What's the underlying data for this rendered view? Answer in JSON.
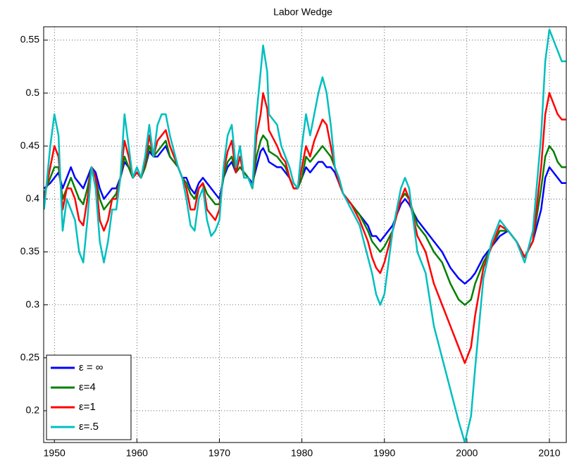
{
  "chart_data": {
    "type": "line",
    "title": "Labor Wedge",
    "x": [
      1948.75,
      1949.5,
      1950,
      1950.5,
      1951,
      1951.5,
      1952,
      1952.5,
      1953,
      1953.5,
      1954,
      1954.5,
      1955,
      1955.5,
      1956,
      1956.5,
      1957,
      1957.5,
      1958,
      1958.5,
      1959,
      1959.5,
      1960,
      1960.5,
      1961,
      1961.5,
      1962,
      1962.5,
      1963,
      1963.5,
      1964,
      1964.5,
      1965,
      1965.5,
      1966,
      1966.5,
      1967,
      1967.5,
      1968,
      1968.5,
      1969,
      1969.5,
      1970,
      1970.5,
      1971,
      1971.5,
      1972,
      1972.5,
      1973,
      1973.5,
      1974,
      1974.5,
      1975,
      1975.3,
      1975.8,
      1976,
      1977,
      1977.5,
      1978,
      1978.5,
      1979,
      1979.5,
      1980,
      1980.5,
      1981,
      1981.5,
      1982,
      1982.5,
      1983,
      1983.5,
      1984,
      1984.5,
      1985,
      1986,
      1987,
      1988,
      1988.5,
      1989,
      1989.5,
      1990,
      1991,
      1992,
      1992.5,
      1993,
      1994,
      1995,
      1996,
      1997,
      1998,
      1999,
      1999.75,
      2000.5,
      2001,
      2002,
      2003,
      2004,
      2005,
      2006,
      2007,
      2008,
      2009,
      2009.5,
      2010,
      2010.5,
      2011,
      2011.5,
      2012
    ],
    "series": [
      {
        "name": "ε = ∞",
        "color": "#0000ff",
        "values": [
          0.41,
          0.415,
          0.42,
          0.425,
          0.41,
          0.42,
          0.43,
          0.42,
          0.415,
          0.41,
          0.42,
          0.43,
          0.425,
          0.41,
          0.4,
          0.405,
          0.41,
          0.41,
          0.42,
          0.435,
          0.43,
          0.42,
          0.425,
          0.42,
          0.43,
          0.445,
          0.44,
          0.44,
          0.445,
          0.45,
          0.44,
          0.435,
          0.43,
          0.42,
          0.42,
          0.41,
          0.405,
          0.415,
          0.42,
          0.415,
          0.41,
          0.405,
          0.4,
          0.42,
          0.43,
          0.435,
          0.425,
          0.43,
          0.425,
          0.42,
          0.415,
          0.43,
          0.445,
          0.448,
          0.44,
          0.435,
          0.43,
          0.43,
          0.425,
          0.42,
          0.41,
          0.41,
          0.42,
          0.43,
          0.425,
          0.43,
          0.435,
          0.435,
          0.43,
          0.43,
          0.425,
          0.415,
          0.405,
          0.395,
          0.385,
          0.375,
          0.365,
          0.365,
          0.36,
          0.365,
          0.375,
          0.395,
          0.4,
          0.395,
          0.38,
          0.37,
          0.36,
          0.35,
          0.335,
          0.325,
          0.32,
          0.325,
          0.33,
          0.345,
          0.355,
          0.365,
          0.37,
          0.36,
          0.345,
          0.36,
          0.39,
          0.42,
          0.43,
          0.425,
          0.42,
          0.415,
          0.415
        ]
      },
      {
        "name": "ε=4",
        "color": "#008000",
        "values": [
          0.405,
          0.42,
          0.43,
          0.43,
          0.4,
          0.41,
          0.42,
          0.41,
          0.4,
          0.395,
          0.41,
          0.43,
          0.42,
          0.4,
          0.39,
          0.395,
          0.4,
          0.405,
          0.42,
          0.44,
          0.43,
          0.42,
          0.425,
          0.42,
          0.43,
          0.45,
          0.44,
          0.445,
          0.45,
          0.455,
          0.44,
          0.435,
          0.43,
          0.42,
          0.415,
          0.405,
          0.4,
          0.41,
          0.415,
          0.405,
          0.4,
          0.395,
          0.395,
          0.42,
          0.435,
          0.44,
          0.425,
          0.43,
          0.425,
          0.42,
          0.41,
          0.44,
          0.455,
          0.46,
          0.455,
          0.445,
          0.44,
          0.435,
          0.43,
          0.42,
          0.41,
          0.41,
          0.42,
          0.44,
          0.435,
          0.44,
          0.445,
          0.45,
          0.445,
          0.44,
          0.43,
          0.415,
          0.405,
          0.395,
          0.385,
          0.37,
          0.36,
          0.355,
          0.35,
          0.355,
          0.37,
          0.4,
          0.405,
          0.4,
          0.375,
          0.365,
          0.35,
          0.34,
          0.32,
          0.305,
          0.3,
          0.305,
          0.32,
          0.34,
          0.355,
          0.37,
          0.37,
          0.36,
          0.345,
          0.36,
          0.41,
          0.44,
          0.45,
          0.445,
          0.435,
          0.43,
          0.43
        ]
      },
      {
        "name": "ε=1",
        "color": "#ff0000",
        "values": [
          0.4,
          0.43,
          0.45,
          0.44,
          0.39,
          0.41,
          0.41,
          0.4,
          0.38,
          0.375,
          0.4,
          0.43,
          0.42,
          0.38,
          0.37,
          0.38,
          0.4,
          0.4,
          0.42,
          0.455,
          0.44,
          0.42,
          0.425,
          0.42,
          0.435,
          0.46,
          0.44,
          0.455,
          0.46,
          0.465,
          0.45,
          0.44,
          0.43,
          0.42,
          0.41,
          0.39,
          0.39,
          0.41,
          0.415,
          0.39,
          0.385,
          0.38,
          0.39,
          0.425,
          0.445,
          0.455,
          0.425,
          0.44,
          0.42,
          0.42,
          0.41,
          0.46,
          0.48,
          0.5,
          0.485,
          0.465,
          0.45,
          0.44,
          0.435,
          0.42,
          0.41,
          0.41,
          0.43,
          0.45,
          0.44,
          0.455,
          0.465,
          0.475,
          0.47,
          0.45,
          0.43,
          0.415,
          0.405,
          0.395,
          0.38,
          0.36,
          0.345,
          0.335,
          0.33,
          0.34,
          0.37,
          0.4,
          0.41,
          0.4,
          0.365,
          0.35,
          0.32,
          0.3,
          0.28,
          0.26,
          0.245,
          0.26,
          0.29,
          0.335,
          0.355,
          0.375,
          0.37,
          0.36,
          0.345,
          0.36,
          0.43,
          0.48,
          0.5,
          0.49,
          0.48,
          0.475,
          0.475
        ]
      },
      {
        "name": "ε=.5",
        "color": "#00bfbf",
        "values": [
          0.39,
          0.45,
          0.48,
          0.46,
          0.37,
          0.4,
          0.39,
          0.38,
          0.35,
          0.34,
          0.38,
          0.43,
          0.41,
          0.36,
          0.34,
          0.36,
          0.39,
          0.39,
          0.42,
          0.48,
          0.45,
          0.42,
          0.43,
          0.42,
          0.44,
          0.47,
          0.44,
          0.47,
          0.48,
          0.48,
          0.46,
          0.445,
          0.43,
          0.42,
          0.4,
          0.375,
          0.37,
          0.4,
          0.41,
          0.38,
          0.365,
          0.37,
          0.38,
          0.43,
          0.46,
          0.47,
          0.43,
          0.45,
          0.42,
          0.42,
          0.41,
          0.48,
          0.52,
          0.545,
          0.52,
          0.48,
          0.47,
          0.45,
          0.44,
          0.43,
          0.415,
          0.41,
          0.45,
          0.48,
          0.46,
          0.48,
          0.5,
          0.515,
          0.5,
          0.47,
          0.43,
          0.42,
          0.405,
          0.39,
          0.375,
          0.345,
          0.33,
          0.31,
          0.3,
          0.31,
          0.37,
          0.41,
          0.42,
          0.41,
          0.35,
          0.33,
          0.28,
          0.25,
          0.22,
          0.19,
          0.17,
          0.195,
          0.24,
          0.325,
          0.36,
          0.38,
          0.37,
          0.36,
          0.34,
          0.37,
          0.46,
          0.53,
          0.56,
          0.55,
          0.54,
          0.53,
          0.53
        ]
      }
    ],
    "xlim": [
      1948.7,
      2012.05
    ],
    "ylim": [
      0.17,
      0.5626
    ],
    "xticks": [
      1950,
      1960,
      1970,
      1980,
      1990,
      2000,
      2010
    ],
    "yticks": [
      0.2,
      0.25,
      0.3,
      0.35,
      0.4,
      0.45,
      0.5,
      0.55
    ],
    "grid": true,
    "legend": "lower left"
  }
}
